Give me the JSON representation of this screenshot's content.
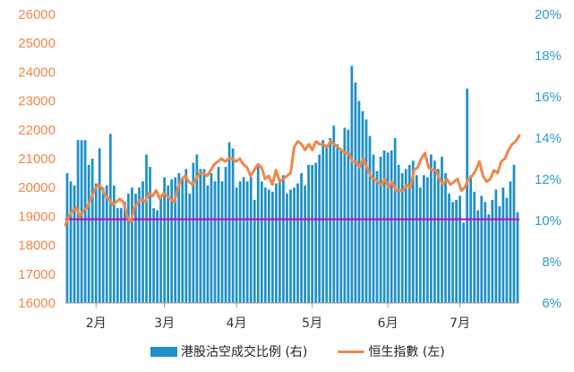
{
  "chart_data": {
    "type": "bar+line",
    "colors": {
      "bars": "#1e90c8",
      "line": "#f0864a",
      "reference_line": "#cc00cc",
      "left_axis_text": "#f0864a",
      "right_axis_text": "#2d9bd0"
    },
    "left_axis": {
      "ylim": [
        16000,
        26000
      ],
      "ticks": [
        "16000",
        "17000",
        "18000",
        "19000",
        "20000",
        "21000",
        "22000",
        "23000",
        "24000",
        "25000",
        "26000"
      ]
    },
    "right_axis": {
      "ylim": [
        6,
        20
      ],
      "ticks": [
        "6%",
        "8%",
        "10%",
        "12%",
        "14%",
        "16%",
        "18%",
        "20%"
      ]
    },
    "x_ticks": [
      {
        "label": "2月",
        "index": 8
      },
      {
        "label": "3月",
        "index": 27
      },
      {
        "label": "4月",
        "index": 47
      },
      {
        "label": "5月",
        "index": 68
      },
      {
        "label": "6月",
        "index": 89
      },
      {
        "label": "7月",
        "index": 109
      }
    ],
    "reference_line_value": 18900,
    "series": [
      {
        "name": "港股沽空成交比例 (右)",
        "axis": "right",
        "kind": "bar",
        "values": [
          12.3,
          11.9,
          11.7,
          13.9,
          13.9,
          13.9,
          12.7,
          13.0,
          11.8,
          13.5,
          11.6,
          11.7,
          14.2,
          11.7,
          10.6,
          10.6,
          10.9,
          11.3,
          11.6,
          11.3,
          11.6,
          11.9,
          13.2,
          12.6,
          10.6,
          10.5,
          11.2,
          12.1,
          11.7,
          12.0,
          12.1,
          12.3,
          12.1,
          12.5,
          11.3,
          12.8,
          13.2,
          12.5,
          12.5,
          11.7,
          12.3,
          11.9,
          12.6,
          11.9,
          12.6,
          13.8,
          13.5,
          11.6,
          11.9,
          12.1,
          11.9,
          12.1,
          11.0,
          12.7,
          11.9,
          11.6,
          11.5,
          11.4,
          11.8,
          11.9,
          12.2,
          11.3,
          11.5,
          11.6,
          11.8,
          12.3,
          11.7,
          12.7,
          12.7,
          12.8,
          13.2,
          13.9,
          13.6,
          14.0,
          14.6,
          13.7,
          13.4,
          14.5,
          14.4,
          17.5,
          16.7,
          15.8,
          15.3,
          14.9,
          14.1,
          13.2,
          12.4,
          13.1,
          13.4,
          13.3,
          13.4,
          14.0,
          12.7,
          12.3,
          12.5,
          12.7,
          12.9,
          12.2,
          11.6,
          12.2,
          12.1,
          13.2,
          12.9,
          12.5,
          13.1,
          12.3,
          11.3,
          10.9,
          11.0,
          11.2,
          9.9,
          16.4,
          12.2,
          11.4,
          10.5,
          11.2,
          10.9,
          10.3,
          11.0,
          11.5,
          10.7,
          11.6,
          11.1,
          11.9,
          12.7,
          10.4
        ]
      },
      {
        "name": "恒生指數 (左)",
        "axis": "left",
        "kind": "line",
        "values": [
          18700,
          19000,
          19200,
          19300,
          19000,
          19200,
          19300,
          19600,
          19900,
          20100,
          20000,
          19700,
          19600,
          19400,
          19500,
          19600,
          19500,
          19000,
          18800,
          19300,
          19500,
          19600,
          19500,
          19800,
          19700,
          19900,
          19600,
          19800,
          19700,
          19600,
          19500,
          20000,
          20300,
          20400,
          20200,
          20100,
          20300,
          20500,
          20500,
          20400,
          20600,
          20800,
          20900,
          21000,
          20900,
          21000,
          21000,
          20900,
          21000,
          20800,
          20700,
          20400,
          20600,
          20800,
          20700,
          20300,
          20400,
          20100,
          20600,
          20200,
          20300,
          20400,
          20500,
          21400,
          21600,
          21500,
          21300,
          21500,
          21300,
          21600,
          21500,
          21500,
          21400,
          21600,
          21500,
          21400,
          21300,
          21200,
          21200,
          20900,
          20900,
          20700,
          21000,
          20700,
          20400,
          20300,
          20200,
          20100,
          20300,
          20000,
          20200,
          19900,
          19900,
          19900,
          20100,
          20000,
          20600,
          20700,
          21000,
          21200,
          20700,
          20600,
          20600,
          20300,
          20100,
          20300,
          20100,
          20200,
          20300,
          19900,
          20000,
          20300,
          20400,
          20600,
          20900,
          20400,
          20200,
          20300,
          20600,
          20500,
          20900,
          21000,
          21300,
          21500,
          21600,
          21800
        ]
      }
    ]
  },
  "legend": {
    "bar_label": "港股沽空成交比例 (右)",
    "line_label": "恒生指數 (左)"
  }
}
